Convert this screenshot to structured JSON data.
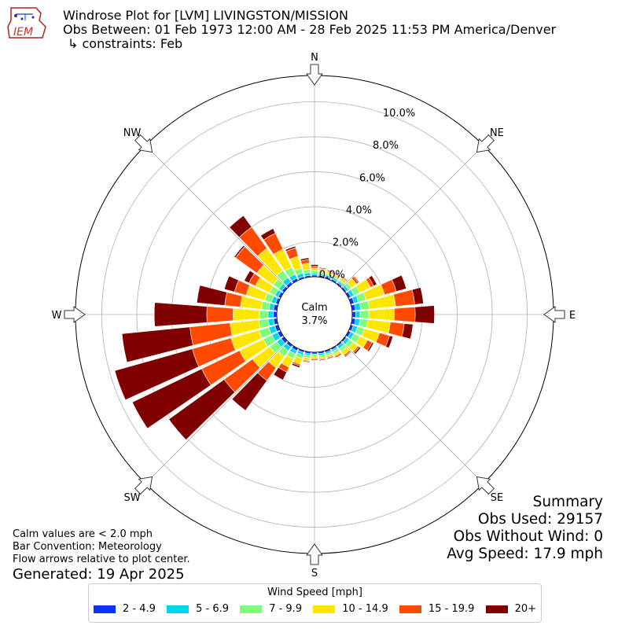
{
  "header": {
    "title_line1": "Windrose Plot for [LVM] LIVINGSTON/MISSION",
    "title_line2": "Obs Between: 01 Feb 1973 12:00 AM - 28 Feb 2025 11:53 PM America/Denver",
    "title_line3": "↳ constraints: Feb",
    "logo_text": "IEM"
  },
  "summary": {
    "heading": "Summary",
    "obs_used": "Obs Used: 29157",
    "obs_without_wind": "Obs Without Wind: 0",
    "avg_speed": "Avg Speed: 17.9 mph"
  },
  "notes": {
    "calm_note": "Calm values are < 2.0 mph",
    "bar_convention": "Bar Convention: Meteorology",
    "flow_note": "Flow arrows relative to plot center.",
    "generated": "Generated: 19 Apr 2025"
  },
  "legend": {
    "title": "Wind Speed [mph]",
    "items": [
      {
        "label": "2 - 4.9",
        "color": "#0a33ff"
      },
      {
        "label": "5 - 6.9",
        "color": "#00d5f0"
      },
      {
        "label": "7 - 9.9",
        "color": "#7dff7b"
      },
      {
        "label": "10 - 14.9",
        "color": "#ffe600"
      },
      {
        "label": "15 - 19.9",
        "color": "#ff4a00"
      },
      {
        "label": "20+",
        "color": "#800000"
      }
    ]
  },
  "chart_data": {
    "type": "windrose",
    "calm_label": "Calm",
    "calm_value": "3.7%",
    "calm_percent": 3.7,
    "radial_ticks": [
      "0.0%",
      "2.0%",
      "4.0%",
      "6.0%",
      "8.0%",
      "10.0%"
    ],
    "radial_tick_values": [
      0,
      2,
      4,
      6,
      8,
      10
    ],
    "rmax_percent": 11.5,
    "compass": [
      "N",
      "NE",
      "E",
      "SE",
      "S",
      "SW",
      "W",
      "NW"
    ],
    "bin_colors": [
      "#0a33ff",
      "#00d5f0",
      "#7dff7b",
      "#ffe600",
      "#ff4a00",
      "#800000"
    ],
    "directions_deg": [
      0,
      10,
      20,
      30,
      40,
      50,
      60,
      70,
      80,
      90,
      100,
      110,
      120,
      130,
      140,
      150,
      160,
      170,
      180,
      190,
      200,
      210,
      220,
      230,
      240,
      250,
      260,
      270,
      280,
      290,
      300,
      310,
      320,
      330,
      340,
      350
    ],
    "cumulative_percent": [
      [
        0.1,
        0.2,
        0.35,
        0.5,
        0.6,
        0.7
      ],
      [
        0.1,
        0.2,
        0.3,
        0.45,
        0.5,
        0.55
      ],
      [
        0.1,
        0.2,
        0.3,
        0.4,
        0.45,
        0.5
      ],
      [
        0.1,
        0.2,
        0.3,
        0.4,
        0.45,
        0.5
      ],
      [
        0.1,
        0.2,
        0.3,
        0.45,
        0.5,
        0.55
      ],
      [
        0.1,
        0.25,
        0.45,
        0.8,
        0.95,
        1.0
      ],
      [
        0.15,
        0.35,
        0.7,
        1.4,
        1.6,
        1.8
      ],
      [
        0.2,
        0.45,
        0.9,
        2.0,
        2.7,
        3.3
      ],
      [
        0.2,
        0.5,
        1.0,
        2.5,
        3.6,
        4.1
      ],
      [
        0.2,
        0.45,
        0.95,
        2.4,
        3.6,
        4.7
      ],
      [
        0.2,
        0.45,
        0.9,
        2.2,
        3.0,
        3.5
      ],
      [
        0.15,
        0.4,
        0.8,
        1.7,
        2.3,
        2.5
      ],
      [
        0.15,
        0.35,
        0.7,
        1.2,
        1.5,
        1.6
      ],
      [
        0.1,
        0.3,
        0.55,
        0.9,
        1.0,
        1.1
      ],
      [
        0.1,
        0.25,
        0.45,
        0.7,
        0.8,
        0.85
      ],
      [
        0.1,
        0.2,
        0.35,
        0.5,
        0.6,
        0.6
      ],
      [
        0.1,
        0.2,
        0.3,
        0.4,
        0.45,
        0.5
      ],
      [
        0.1,
        0.2,
        0.3,
        0.4,
        0.45,
        0.5
      ],
      [
        0.1,
        0.15,
        0.25,
        0.35,
        0.4,
        0.45
      ],
      [
        0.1,
        0.2,
        0.35,
        0.5,
        0.55,
        0.6
      ],
      [
        0.1,
        0.25,
        0.45,
        0.8,
        0.9,
        1.0
      ],
      [
        0.15,
        0.35,
        0.65,
        1.2,
        1.5,
        2.0
      ],
      [
        0.15,
        0.4,
        0.8,
        1.6,
        2.5,
        4.6
      ],
      [
        0.2,
        0.5,
        1.0,
        2.2,
        4.2,
        8.1
      ],
      [
        0.2,
        0.55,
        1.1,
        2.6,
        5.0,
        9.4
      ],
      [
        0.2,
        0.55,
        1.15,
        2.8,
        5.1,
        9.7
      ],
      [
        0.2,
        0.5,
        1.05,
        2.7,
        5.0,
        8.9
      ],
      [
        0.2,
        0.5,
        1.0,
        2.5,
        4.0,
        7.0
      ],
      [
        0.2,
        0.45,
        0.9,
        2.1,
        3.0,
        4.6
      ],
      [
        0.15,
        0.4,
        0.8,
        1.9,
        2.6,
        3.2
      ],
      [
        0.15,
        0.35,
        0.7,
        1.6,
        2.0,
        2.3
      ],
      [
        0.15,
        0.35,
        0.75,
        1.9,
        3.4,
        3.5
      ],
      [
        0.15,
        0.45,
        0.95,
        2.5,
        4.0,
        4.8
      ],
      [
        0.15,
        0.4,
        0.85,
        2.0,
        3.0,
        3.3
      ],
      [
        0.1,
        0.3,
        0.6,
        1.3,
        1.8,
        1.9
      ],
      [
        0.1,
        0.25,
        0.45,
        0.8,
        1.0,
        1.1
      ]
    ]
  }
}
